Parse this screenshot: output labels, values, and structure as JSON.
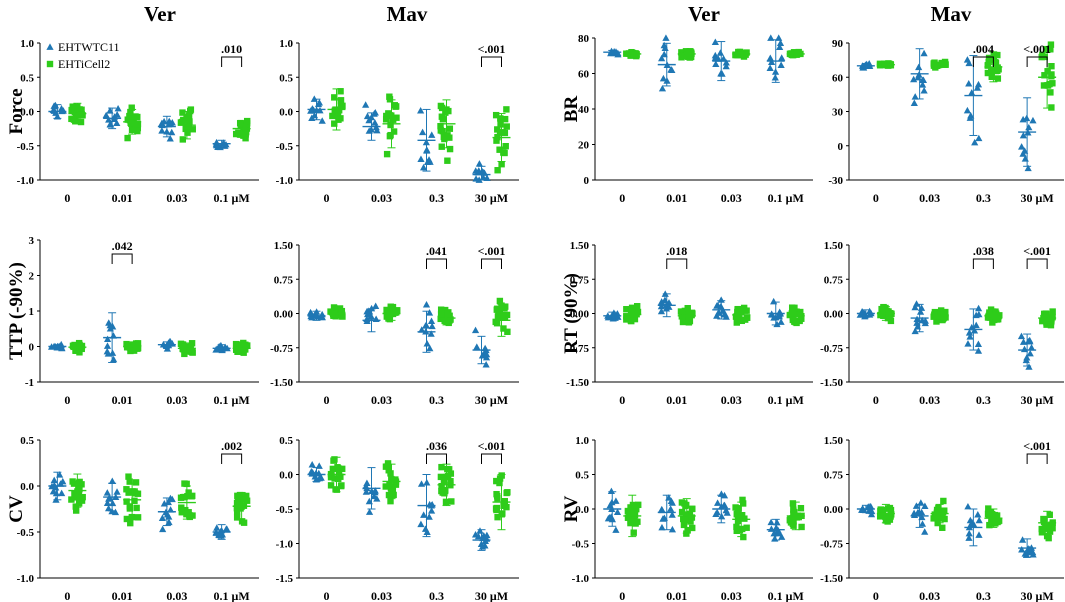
{
  "colors": {
    "wt": "#1f77b4",
    "cell2": "#2ecc1a",
    "axis": "#000000"
  },
  "chart_data": {
    "type": "scatter",
    "column_titles": [
      "Ver",
      "Mav",
      "Ver",
      "Mav"
    ],
    "legend": {
      "position": "top-left",
      "entries": [
        {
          "name": "EHTWTC11",
          "marker": "triangle",
          "color": "#1f77b4"
        },
        {
          "name": "EHTiCell2",
          "marker": "square",
          "color": "#2ecc1a"
        }
      ]
    },
    "panels": [
      {
        "id": "force-ver",
        "ylabel": "Force",
        "ylim": [
          -1.0,
          1.0
        ],
        "yticks": [
          "1.0",
          "0.5",
          "0.0",
          "-0.5",
          "-1.0"
        ],
        "categories": [
          "0",
          "0.01",
          "0.03",
          "0.1 μM"
        ],
        "series": [
          {
            "name": "EHTWTC11",
            "means": [
              0.0,
              -0.1,
              -0.22,
              -0.47
            ],
            "sds": [
              0.1,
              0.15,
              0.15,
              0.05
            ]
          },
          {
            "name": "EHTiCell2",
            "means": [
              -0.03,
              -0.15,
              -0.2,
              -0.25
            ],
            "sds": [
              0.15,
              0.18,
              0.2,
              0.12
            ]
          }
        ],
        "annotations": [
          {
            "category": "0.1 μM",
            "text": ".010"
          }
        ]
      },
      {
        "id": "force-mav",
        "ylabel": "",
        "ylim": [
          -1.0,
          1.0
        ],
        "yticks": [
          "1.0",
          "0.5",
          "0.0",
          "-0.5",
          "-1.0"
        ],
        "categories": [
          "0",
          "0.03",
          "0.3",
          "30 μM"
        ],
        "series": [
          {
            "name": "EHTWTC11",
            "means": [
              0.03,
              -0.22,
              -0.42,
              -0.92
            ],
            "sds": [
              0.15,
              0.2,
              0.45,
              0.12
            ]
          },
          {
            "name": "EHTiCell2",
            "means": [
              0.03,
              -0.18,
              -0.18,
              -0.38
            ],
            "sds": [
              0.3,
              0.35,
              0.35,
              0.35
            ]
          }
        ],
        "annotations": [
          {
            "category": "30 μM",
            "text": "<.001"
          }
        ]
      },
      {
        "id": "br-ver",
        "ylabel": "BR",
        "ylim": [
          0,
          80
        ],
        "yticks": [
          "80",
          "60",
          "40",
          "20",
          "0"
        ],
        "categories": [
          "0",
          "0.01",
          "0.03",
          "0.1 μM"
        ],
        "series": [
          {
            "name": "EHTWTC11",
            "means": [
              72,
              65,
              67,
              67
            ],
            "sds": [
              1,
              12,
              11,
              12
            ]
          },
          {
            "name": "EHTiCell2",
            "means": [
              71,
              71,
              71,
              71
            ],
            "sds": [
              1,
              2,
              1,
              1
            ]
          }
        ],
        "annotations": []
      },
      {
        "id": "br-mav",
        "ylabel": "",
        "ylim": [
          -30,
          90
        ],
        "yticks": [
          "90",
          "60",
          "30",
          "0",
          "-30"
        ],
        "categories": [
          "0",
          "0.03",
          "0.3",
          "30 μM"
        ],
        "series": [
          {
            "name": "EHTWTC11",
            "means": [
              70,
              63,
              44,
              12
            ],
            "sds": [
              2,
              22,
              35,
              30
            ]
          },
          {
            "name": "EHTiCell2",
            "means": [
              71,
              71,
              69,
              60
            ],
            "sds": [
              1,
              2,
              13,
              27
            ]
          }
        ],
        "annotations": [
          {
            "category": "0.3",
            "text": ".004"
          },
          {
            "category": "30 μM",
            "text": "<.001"
          }
        ]
      },
      {
        "id": "ttp-ver",
        "ylabel": "TTP (-90%)",
        "ylim": [
          -1,
          3
        ],
        "yticks": [
          "3",
          "2",
          "1",
          "0",
          "-1"
        ],
        "categories": [
          "0",
          "0.01",
          "0.03",
          "0.1 μM"
        ],
        "series": [
          {
            "name": "EHTWTC11",
            "means": [
              0.0,
              0.25,
              0.05,
              -0.05
            ],
            "sds": [
              0.05,
              0.7,
              0.08,
              0.1
            ]
          },
          {
            "name": "EHTiCell2",
            "means": [
              -0.02,
              0.0,
              -0.05,
              -0.05
            ],
            "sds": [
              0.12,
              0.12,
              0.15,
              0.12
            ]
          }
        ],
        "annotations": [
          {
            "category": "0.01",
            "text": ".042"
          }
        ]
      },
      {
        "id": "ttp-mav",
        "ylabel": "",
        "ylim": [
          -1.5,
          1.5
        ],
        "yticks": [
          "1.50",
          "0.75",
          "0.00",
          "-0.75",
          "-1.50"
        ],
        "categories": [
          "0",
          "0.03",
          "0.3",
          "30 μM"
        ],
        "series": [
          {
            "name": "EHTWTC11",
            "means": [
              -0.05,
              -0.15,
              -0.4,
              -0.8
            ],
            "sds": [
              0.1,
              0.25,
              0.45,
              0.3
            ]
          },
          {
            "name": "EHTiCell2",
            "means": [
              0.0,
              0.0,
              -0.1,
              -0.15
            ],
            "sds": [
              0.12,
              0.15,
              0.15,
              0.35
            ]
          }
        ],
        "annotations": [
          {
            "category": "0.3",
            "text": ".041"
          },
          {
            "category": "30 μM",
            "text": "<.001"
          }
        ]
      },
      {
        "id": "rt-ver",
        "ylabel": "RT (90%)",
        "ylim": [
          -1.5,
          1.5
        ],
        "yticks": [
          "1.50",
          "0.75",
          "0.00",
          "-0.75",
          "-1.50"
        ],
        "categories": [
          "0",
          "0.01",
          "0.03",
          "0.1 μM"
        ],
        "series": [
          {
            "name": "EHTWTC11",
            "means": [
              -0.05,
              0.18,
              0.08,
              0.0
            ],
            "sds": [
              0.08,
              0.25,
              0.2,
              0.25
            ]
          },
          {
            "name": "EHTiCell2",
            "means": [
              -0.02,
              -0.05,
              -0.03,
              -0.05
            ],
            "sds": [
              0.15,
              0.15,
              0.15,
              0.15
            ]
          }
        ],
        "annotations": [
          {
            "category": "0.01",
            "text": ".018"
          }
        ]
      },
      {
        "id": "rt-mav",
        "ylabel": "",
        "ylim": [
          -1.5,
          1.5
        ],
        "yticks": [
          "1.50",
          "0.75",
          "0.00",
          "-0.75",
          "-1.50"
        ],
        "categories": [
          "0",
          "0.03",
          "0.3",
          "30 μM"
        ],
        "series": [
          {
            "name": "EHTWTC11",
            "means": [
              0.0,
              -0.1,
              -0.35,
              -0.8
            ],
            "sds": [
              0.08,
              0.3,
              0.45,
              0.35
            ]
          },
          {
            "name": "EHTiCell2",
            "means": [
              0.0,
              -0.05,
              -0.05,
              -0.1
            ],
            "sds": [
              0.15,
              0.1,
              0.15,
              0.15
            ]
          }
        ],
        "annotations": [
          {
            "category": "0.3",
            "text": ".038"
          },
          {
            "category": "30 μM",
            "text": "<.001"
          }
        ]
      },
      {
        "id": "cv-ver",
        "ylabel": "CV",
        "ylim": [
          -1.0,
          0.5
        ],
        "yticks": [
          "0.5",
          "0.0",
          "-0.5",
          "-1.0"
        ],
        "categories": [
          "0",
          "0.01",
          "0.03",
          "0.1 μM"
        ],
        "series": [
          {
            "name": "EHTWTC11",
            "means": [
              0.0,
              -0.12,
              -0.28,
              -0.5
            ],
            "sds": [
              0.15,
              0.15,
              0.15,
              0.08
            ]
          },
          {
            "name": "EHTiCell2",
            "means": [
              -0.05,
              -0.15,
              -0.18,
              -0.22
            ],
            "sds": [
              0.18,
              0.18,
              0.18,
              0.15
            ]
          }
        ],
        "annotations": [
          {
            "category": "0.1 μM",
            "text": ".002"
          }
        ]
      },
      {
        "id": "cv-mav",
        "ylabel": "",
        "ylim": [
          -1.5,
          0.5
        ],
        "yticks": [
          "0.5",
          "0.0",
          "-0.5",
          "-1.0",
          "-1.5"
        ],
        "categories": [
          "0",
          "0.03",
          "0.3",
          "30 μM"
        ],
        "series": [
          {
            "name": "EHTWTC11",
            "means": [
              0.0,
              -0.2,
              -0.45,
              -0.95
            ],
            "sds": [
              0.1,
              0.3,
              0.45,
              0.15
            ]
          },
          {
            "name": "EHTiCell2",
            "means": [
              0.0,
              -0.1,
              -0.15,
              -0.4
            ],
            "sds": [
              0.25,
              0.25,
              0.3,
              0.4
            ]
          }
        ],
        "annotations": [
          {
            "category": "0.3",
            "text": ".036"
          },
          {
            "category": "30 μM",
            "text": "<.001"
          }
        ]
      },
      {
        "id": "rv-ver",
        "ylabel": "RV",
        "ylim": [
          -1.0,
          1.0
        ],
        "yticks": [
          "1.0",
          "0.5",
          "0.0",
          "-0.5",
          "-1.0"
        ],
        "categories": [
          "0",
          "0.01",
          "0.03",
          "0.1 μM"
        ],
        "series": [
          {
            "name": "EHTWTC11",
            "means": [
              0.0,
              -0.05,
              0.0,
              -0.3
            ],
            "sds": [
              0.25,
              0.25,
              0.2,
              0.15
            ]
          },
          {
            "name": "EHTiCell2",
            "means": [
              -0.1,
              -0.1,
              -0.15,
              -0.1
            ],
            "sds": [
              0.3,
              0.25,
              0.25,
              0.2
            ]
          }
        ],
        "annotations": []
      },
      {
        "id": "rv-mav",
        "ylabel": "",
        "ylim": [
          -1.5,
          1.5
        ],
        "yticks": [
          "1.50",
          "0.75",
          "0.00",
          "-0.75",
          "-1.50"
        ],
        "categories": [
          "0",
          "0.03",
          "0.3",
          "30 μM"
        ],
        "series": [
          {
            "name": "EHTWTC11",
            "means": [
              0.0,
              -0.15,
              -0.4,
              -0.85
            ],
            "sds": [
              0.08,
              0.25,
              0.4,
              0.2
            ]
          },
          {
            "name": "EHTiCell2",
            "means": [
              -0.1,
              -0.1,
              -0.2,
              -0.3
            ],
            "sds": [
              0.2,
              0.2,
              0.2,
              0.25
            ]
          }
        ],
        "annotations": [
          {
            "category": "30 μM",
            "text": "<.001"
          }
        ]
      }
    ]
  }
}
